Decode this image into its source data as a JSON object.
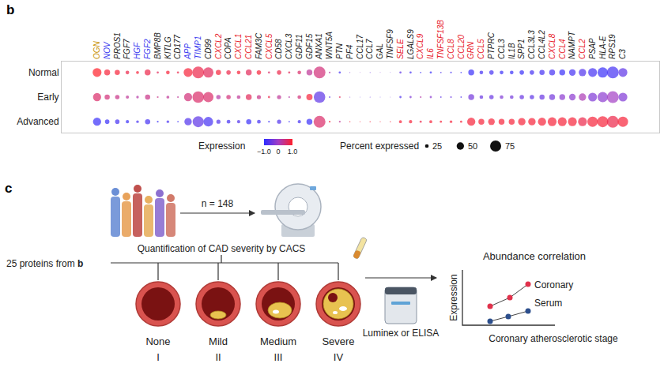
{
  "chart_data": {
    "type": "dot_plot",
    "panel_label": "b",
    "grid": false,
    "categories": [
      "OGN",
      "NOV",
      "PROS1",
      "FGF7",
      "HGF",
      "FGF2",
      "BMP8B",
      "KITLG",
      "CD177",
      "APP",
      "TIMP1",
      "CD99",
      "CXCL2",
      "COPA",
      "CXCL1",
      "CCL21",
      "FAM3C",
      "CXCL5",
      "CD58",
      "CXCL3",
      "GDF11",
      "GDF15",
      "ANXA1",
      "WNT5A",
      "PTN",
      "PF4",
      "CCL17",
      "CCL7",
      "GAL",
      "TNFSF9",
      "SELE",
      "LGALS9",
      "CXCL9",
      "IL6",
      "TNFSF13B",
      "CCL8",
      "CCL20",
      "GRN",
      "CCL5",
      "PTPRC",
      "CCL3",
      "IL1B",
      "SPP1",
      "CCL3L3",
      "CCL4L2",
      "CXCL8",
      "CCL4",
      "NAMPT",
      "CCL2",
      "PSAP",
      "HLA-E",
      "RPS19",
      "C3"
    ],
    "category_colors": [
      "#c89000",
      "#3b3bf0",
      "#222222",
      "#222222",
      "#3b3bf0",
      "#3b3bf0",
      "#222222",
      "#222222",
      "#222222",
      "#3b3bf0",
      "#3b3bf0",
      "#222222",
      "#e8202a",
      "#222222",
      "#e8202a",
      "#e8202a",
      "#222222",
      "#e8202a",
      "#222222",
      "#222222",
      "#222222",
      "#222222",
      "#222222",
      "#222222",
      "#222222",
      "#222222",
      "#222222",
      "#222222",
      "#222222",
      "#222222",
      "#e8202a",
      "#222222",
      "#e8202a",
      "#e8202a",
      "#e8202a",
      "#e8202a",
      "#e8202a",
      "#e8202a",
      "#e8202a",
      "#222222",
      "#222222",
      "#222222",
      "#222222",
      "#222222",
      "#222222",
      "#e8202a",
      "#e8202a",
      "#222222",
      "#e8202a",
      "#222222",
      "#222222",
      "#222222",
      "#222222"
    ],
    "rows": [
      "Normal",
      "Early",
      "Advanced"
    ],
    "expression": [
      [
        1.0,
        0.9,
        0.9,
        0.8,
        0.9,
        0.8,
        0.7,
        0.9,
        0.8,
        0.9,
        0.8,
        0.7,
        0.9,
        0.8,
        0.9,
        0.7,
        0.9,
        0.6,
        0.8,
        0.7,
        0.6,
        0.3,
        0.5,
        0.2,
        -0.8,
        -0.3,
        -0.2,
        -0.5,
        -0.3,
        -0.5,
        -0.6,
        -0.8,
        -0.9,
        -0.9,
        -0.7,
        -0.8,
        -0.9,
        -0.9,
        -0.8,
        -0.8,
        -0.9,
        -0.9,
        -0.9,
        -0.8,
        -0.8,
        -0.8,
        -0.9,
        -0.8,
        -0.7,
        -0.8,
        -0.9,
        -0.8,
        -0.6
      ],
      [
        0.6,
        0.5,
        0.4,
        0.3,
        0.2,
        0.4,
        0.4,
        0.3,
        0.3,
        0.5,
        0.6,
        0.6,
        0.2,
        0.5,
        0.3,
        0.7,
        0.4,
        0.8,
        0.3,
        0.2,
        0.5,
        0.9,
        -0.6,
        -0.6,
        0.7,
        -0.3,
        -0.5,
        -0.5,
        -0.6,
        -0.3,
        -0.7,
        -0.3,
        0.2,
        -0.2,
        -0.6,
        -0.5,
        -0.7,
        -0.4,
        -0.5,
        -0.5,
        -0.3,
        -0.4,
        -0.5,
        -0.6,
        -0.5,
        -0.4,
        -0.2,
        -0.2,
        0.1,
        -0.3,
        -0.2,
        0.0,
        -0.3
      ],
      [
        -0.9,
        -0.9,
        -0.8,
        -0.9,
        -0.8,
        -0.8,
        -0.9,
        -0.8,
        -0.9,
        -0.7,
        -0.6,
        -0.8,
        -0.7,
        -0.8,
        -0.7,
        -0.9,
        -0.8,
        -0.9,
        -0.7,
        -0.9,
        -0.8,
        -0.9,
        0.6,
        0.9,
        0.3,
        0.9,
        0.9,
        0.9,
        0.9,
        0.9,
        0.9,
        0.9,
        0.8,
        0.9,
        0.9,
        0.9,
        0.9,
        0.9,
        0.9,
        0.9,
        0.9,
        0.9,
        0.9,
        0.9,
        0.9,
        0.9,
        0.9,
        0.9,
        0.8,
        0.9,
        0.9,
        0.8,
        0.9
      ]
    ],
    "percent_expressed": [
      [
        60,
        40,
        35,
        25,
        20,
        40,
        15,
        25,
        15,
        60,
        80,
        70,
        35,
        30,
        25,
        40,
        30,
        15,
        30,
        15,
        25,
        40,
        80,
        12,
        15,
        6,
        5,
        6,
        5,
        5,
        15,
        15,
        10,
        15,
        10,
        12,
        10,
        40,
        25,
        30,
        25,
        25,
        30,
        30,
        35,
        40,
        40,
        45,
        50,
        60,
        70,
        80,
        60
      ],
      [
        55,
        35,
        30,
        22,
        18,
        35,
        12,
        20,
        12,
        55,
        78,
        70,
        30,
        30,
        25,
        40,
        28,
        15,
        28,
        12,
        25,
        42,
        78,
        10,
        12,
        6,
        5,
        6,
        5,
        5,
        15,
        15,
        12,
        15,
        10,
        12,
        10,
        40,
        25,
        30,
        25,
        25,
        30,
        30,
        35,
        40,
        40,
        45,
        50,
        60,
        70,
        80,
        60
      ],
      [
        55,
        30,
        30,
        22,
        18,
        35,
        12,
        18,
        10,
        50,
        75,
        65,
        28,
        25,
        22,
        35,
        25,
        12,
        28,
        10,
        22,
        40,
        80,
        12,
        12,
        8,
        6,
        8,
        6,
        8,
        20,
        22,
        15,
        20,
        15,
        18,
        15,
        55,
        40,
        45,
        40,
        40,
        50,
        50,
        55,
        60,
        60,
        60,
        60,
        70,
        75,
        80,
        70
      ]
    ],
    "colorbar": {
      "title": "Expression",
      "range": [
        -1,
        1
      ],
      "ticks": [
        {
          "value": -1,
          "label": "−1.0"
        },
        0,
        {
          "value": 1,
          "label": "1.0"
        }
      ]
    },
    "size_legend": {
      "title": "Percent expressed",
      "values": [
        25,
        50,
        75
      ]
    }
  },
  "diagram": {
    "panel_label": "c",
    "input": {
      "text": "25 proteins from ",
      "ref": "b"
    },
    "cohort": "n = 148",
    "quantification": "Quantification of CAD severity by CACS",
    "stages": [
      {
        "name": "None",
        "numeral": "I"
      },
      {
        "name": "Mild",
        "numeral": "II"
      },
      {
        "name": "Medium",
        "numeral": "III"
      },
      {
        "name": "Severe",
        "numeral": "IV"
      }
    ],
    "assay": "Luminex or ELISA",
    "correlation": {
      "title": "Abundance correlation",
      "y_label": "Expression",
      "x_label": "Coronary atherosclerotic stage",
      "series": [
        {
          "name": "Coronary",
          "color": "#e0314b"
        },
        {
          "name": "Serum",
          "color": "#2c4e8c"
        }
      ]
    }
  }
}
